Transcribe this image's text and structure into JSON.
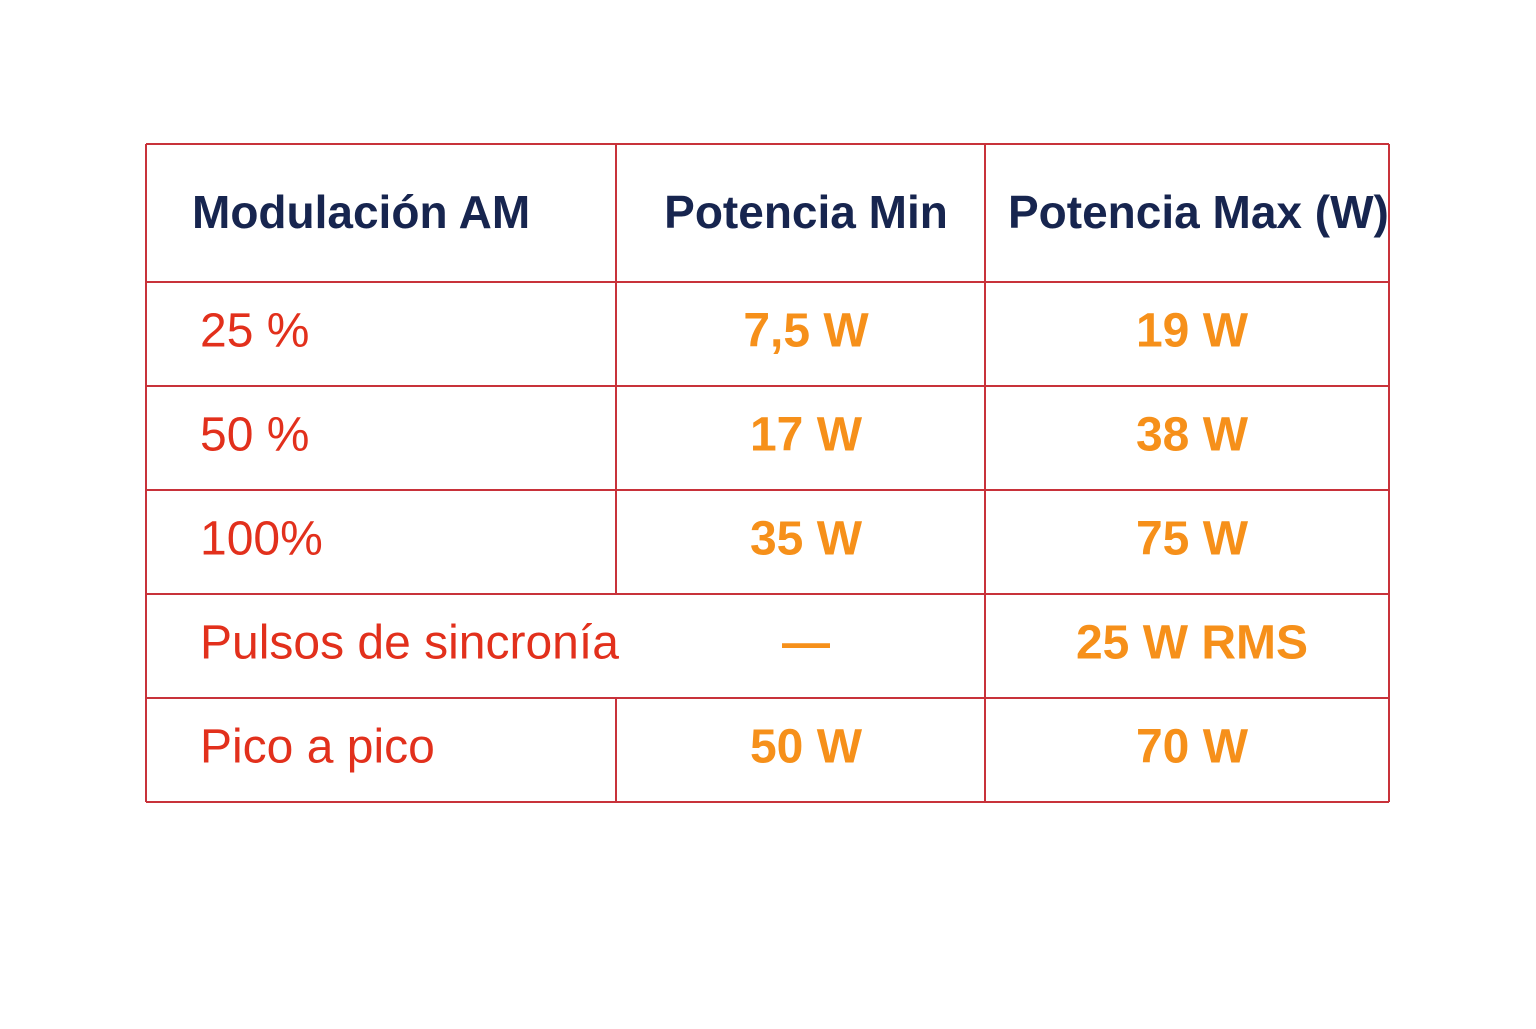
{
  "table": {
    "header": [
      "Modulación AM",
      "Potencia Min",
      "Potencia Max (W)"
    ],
    "rows": [
      [
        "25 %",
        "7,5 W",
        "19 W"
      ],
      [
        "50 %",
        "17 W",
        "38 W"
      ],
      [
        "100%",
        "35 W",
        "75 W"
      ],
      [
        "Pulsos de sincronía",
        "—",
        "25 W RMS"
      ],
      [
        "Pico a pico",
        "50 W",
        "70 W"
      ]
    ]
  }
}
